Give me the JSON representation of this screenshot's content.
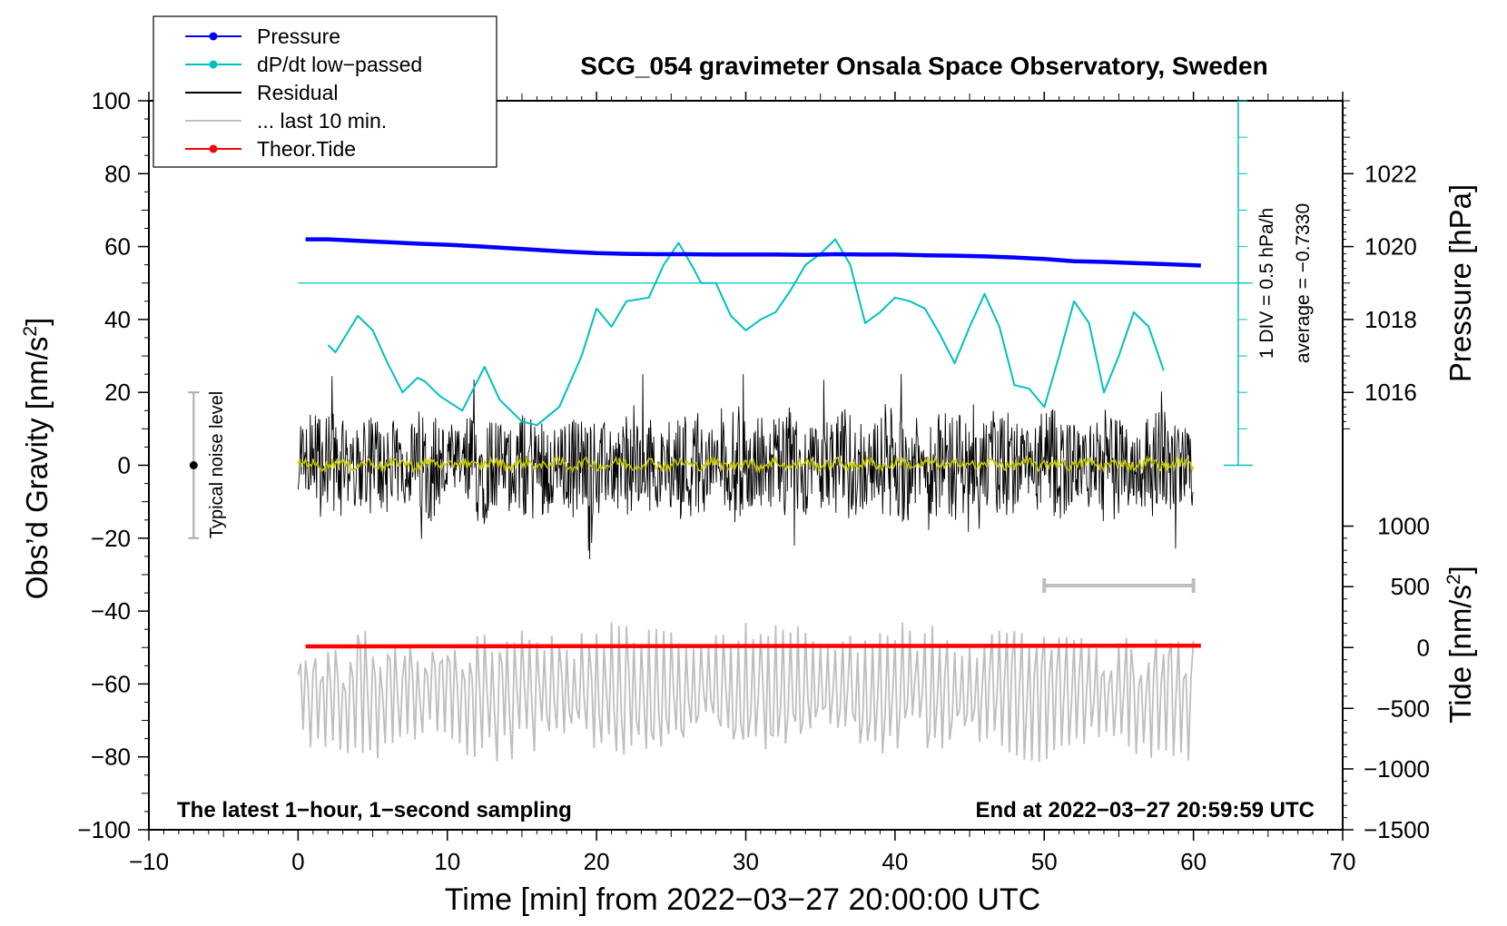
{
  "chart_data": {
    "type": "line",
    "title": "SCG_054 gravimeter Onsala Space Observatory, Sweden",
    "xlabel": "Time [min] from 2022−03−27 20:00:00 UTC",
    "ylabel_left_main": "Obs’d Gravity [nm/s",
    "ylabel_left_sup": "2",
    "ylabel_left_tail": "]",
    "ylabel_right_pressure": "Pressure [hPa]",
    "ylabel_right_tide_main": "Tide [nm/s",
    "ylabel_right_tide_sup": "2",
    "ylabel_right_tide_tail": "]",
    "xlim": [
      -10,
      70
    ],
    "ylim": [
      -100,
      100
    ],
    "x_ticks": [
      -10,
      0,
      10,
      20,
      30,
      40,
      50,
      60,
      70
    ],
    "x_tick_labels": [
      "−10",
      "0",
      "10",
      "20",
      "30",
      "40",
      "50",
      "60",
      "70"
    ],
    "y_ticks": [
      -100,
      -80,
      -60,
      -40,
      -20,
      0,
      20,
      40,
      60,
      80,
      100
    ],
    "y_tick_labels": [
      "−100",
      "−80",
      "−60",
      "−40",
      "−20",
      "0",
      "20",
      "40",
      "60",
      "80",
      "100"
    ],
    "pressure_axis": {
      "ticks": [
        1016,
        1018,
        1020,
        1022
      ],
      "tick_labels": [
        "1016",
        "1018",
        "1020",
        "1022"
      ],
      "gravity_equiv": [
        20,
        40,
        60,
        80
      ]
    },
    "tide_axis": {
      "ticks": [
        -1500,
        -1000,
        -500,
        0,
        500,
        1000
      ],
      "tick_labels": [
        "−1500",
        "−1000",
        "−500",
        "0",
        "500",
        "1000"
      ],
      "gravity_equiv": [
        -100,
        -83.3,
        -66.7,
        -50,
        -33.3,
        -16.7
      ]
    },
    "legend": [
      {
        "label": "Pressure",
        "color": "#0000ff",
        "marker": "dot"
      },
      {
        "label": "dP/dt low−passed",
        "color": "#00c0c0",
        "marker": "dot"
      },
      {
        "label": "Residual",
        "color": "#000000",
        "marker": "none"
      },
      {
        "label": "... last 10 min.",
        "color": "#bebebe",
        "marker": "none"
      },
      {
        "label": "Theor.Tide",
        "color": "#ff0000",
        "marker": "dot"
      }
    ],
    "legend_position": "top-left",
    "annotations": {
      "bottom_left": "The latest 1−hour, 1−second sampling",
      "bottom_right": "End at 2022−03−27 20:59:59 UTC",
      "noise_label": "Typical noise level",
      "dpdt_scale": "1 DIV = 0.5 hPa/h",
      "dpdt_average": "average = −0.7330"
    },
    "noise_bar": {
      "x": -7,
      "y_center": 0,
      "y_low": -20,
      "y_high": 20
    },
    "window_bar": {
      "x_start": 50,
      "x_end": 60,
      "y": -33
    },
    "dpdt_scale_axis": {
      "x": 63,
      "y_low": 0,
      "y_high": 100,
      "baseline_y": 50
    },
    "series": [
      {
        "name": "Pressure",
        "color": "#0000ff",
        "x": [
          0.5,
          2,
          4,
          6,
          8,
          10,
          12,
          14,
          16,
          18,
          20,
          22,
          24,
          26,
          28,
          30,
          32,
          34,
          36,
          38,
          40,
          42,
          44,
          46,
          48,
          50,
          52,
          54,
          56,
          58,
          60.5
        ],
        "y": [
          62,
          62,
          61.6,
          61.2,
          60.8,
          60.5,
          60.1,
          59.6,
          59.1,
          58.6,
          58.2,
          58,
          57.9,
          57.9,
          57.8,
          57.8,
          57.8,
          57.7,
          57.9,
          57.8,
          57.8,
          57.6,
          57.5,
          57.3,
          57,
          56.6,
          56,
          55.8,
          55.5,
          55.2,
          54.8
        ]
      },
      {
        "name": "dP/dt low−passed",
        "color": "#00c0c0",
        "x": [
          2,
          2.5,
          4,
          5,
          6,
          7,
          8,
          8.5,
          9.5,
          11,
          12.5,
          13.5,
          15,
          16,
          17.5,
          19,
          20,
          21,
          22,
          23.5,
          24.5,
          25.5,
          26.5,
          27,
          28,
          29,
          30,
          31,
          32,
          33,
          34,
          35,
          36,
          37,
          38,
          39,
          40,
          41,
          42,
          43,
          44,
          45,
          46,
          47,
          48,
          49,
          50,
          51,
          52,
          53,
          54,
          55,
          56,
          57,
          58
        ],
        "y": [
          33,
          31,
          41,
          37,
          28,
          20,
          24,
          23,
          19,
          15,
          27,
          18,
          12,
          11,
          16,
          30,
          43,
          38,
          45,
          46,
          55,
          61,
          54,
          50,
          50,
          41,
          37,
          40,
          42,
          48,
          55,
          58,
          62,
          55,
          39,
          42,
          46,
          45,
          43,
          36,
          28,
          38,
          47,
          38,
          22,
          21,
          16,
          30,
          45,
          39,
          20,
          30,
          42,
          38,
          26
        ]
      },
      {
        "name": "Residual",
        "color": "#000000",
        "x": [
          0,
          60
        ],
        "y": [
          0,
          0
        ],
        "amplitude": "±20"
      },
      {
        "name": "... last 10 min.",
        "color": "#bebebe",
        "x": [
          0,
          60
        ],
        "y": [
          -62,
          -62
        ],
        "amplitude": "±20"
      },
      {
        "name": "Theor.Tide",
        "color": "#ff0000",
        "x": [
          0.5,
          60.5
        ],
        "y": [
          -49.7,
          -49.5
        ]
      }
    ]
  }
}
